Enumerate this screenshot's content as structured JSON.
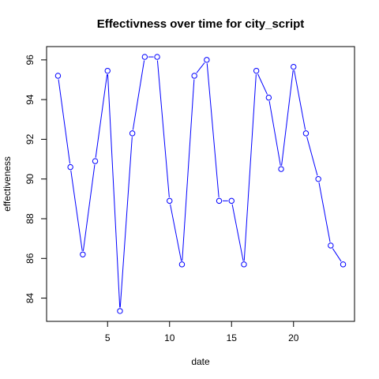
{
  "chart_data": {
    "type": "line",
    "title": "Effectivness over time for city_script",
    "xlabel": "date",
    "ylabel": "effectiveness",
    "xlim": [
      0.08,
      24.92
    ],
    "ylim": [
      82.83,
      96.67
    ],
    "x_ticks": [
      5,
      10,
      15,
      20
    ],
    "y_ticks": [
      84,
      86,
      88,
      90,
      92,
      94,
      96
    ],
    "grid": false,
    "legend": "none",
    "series": [
      {
        "color": "#0000ff",
        "marker": "open-circle",
        "x": [
          1,
          2,
          3,
          4,
          5,
          6,
          7,
          8,
          9,
          10,
          11,
          12,
          13,
          14,
          15,
          16,
          17,
          18,
          19,
          20,
          21,
          22,
          23,
          24
        ],
        "values": [
          95.2,
          90.6,
          86.2,
          90.9,
          95.45,
          83.35,
          92.3,
          96.15,
          96.15,
          88.9,
          85.7,
          95.2,
          96.0,
          88.9,
          88.9,
          85.7,
          95.45,
          94.1,
          90.5,
          95.65,
          92.3,
          90.0,
          86.65,
          85.7
        ]
      }
    ]
  }
}
